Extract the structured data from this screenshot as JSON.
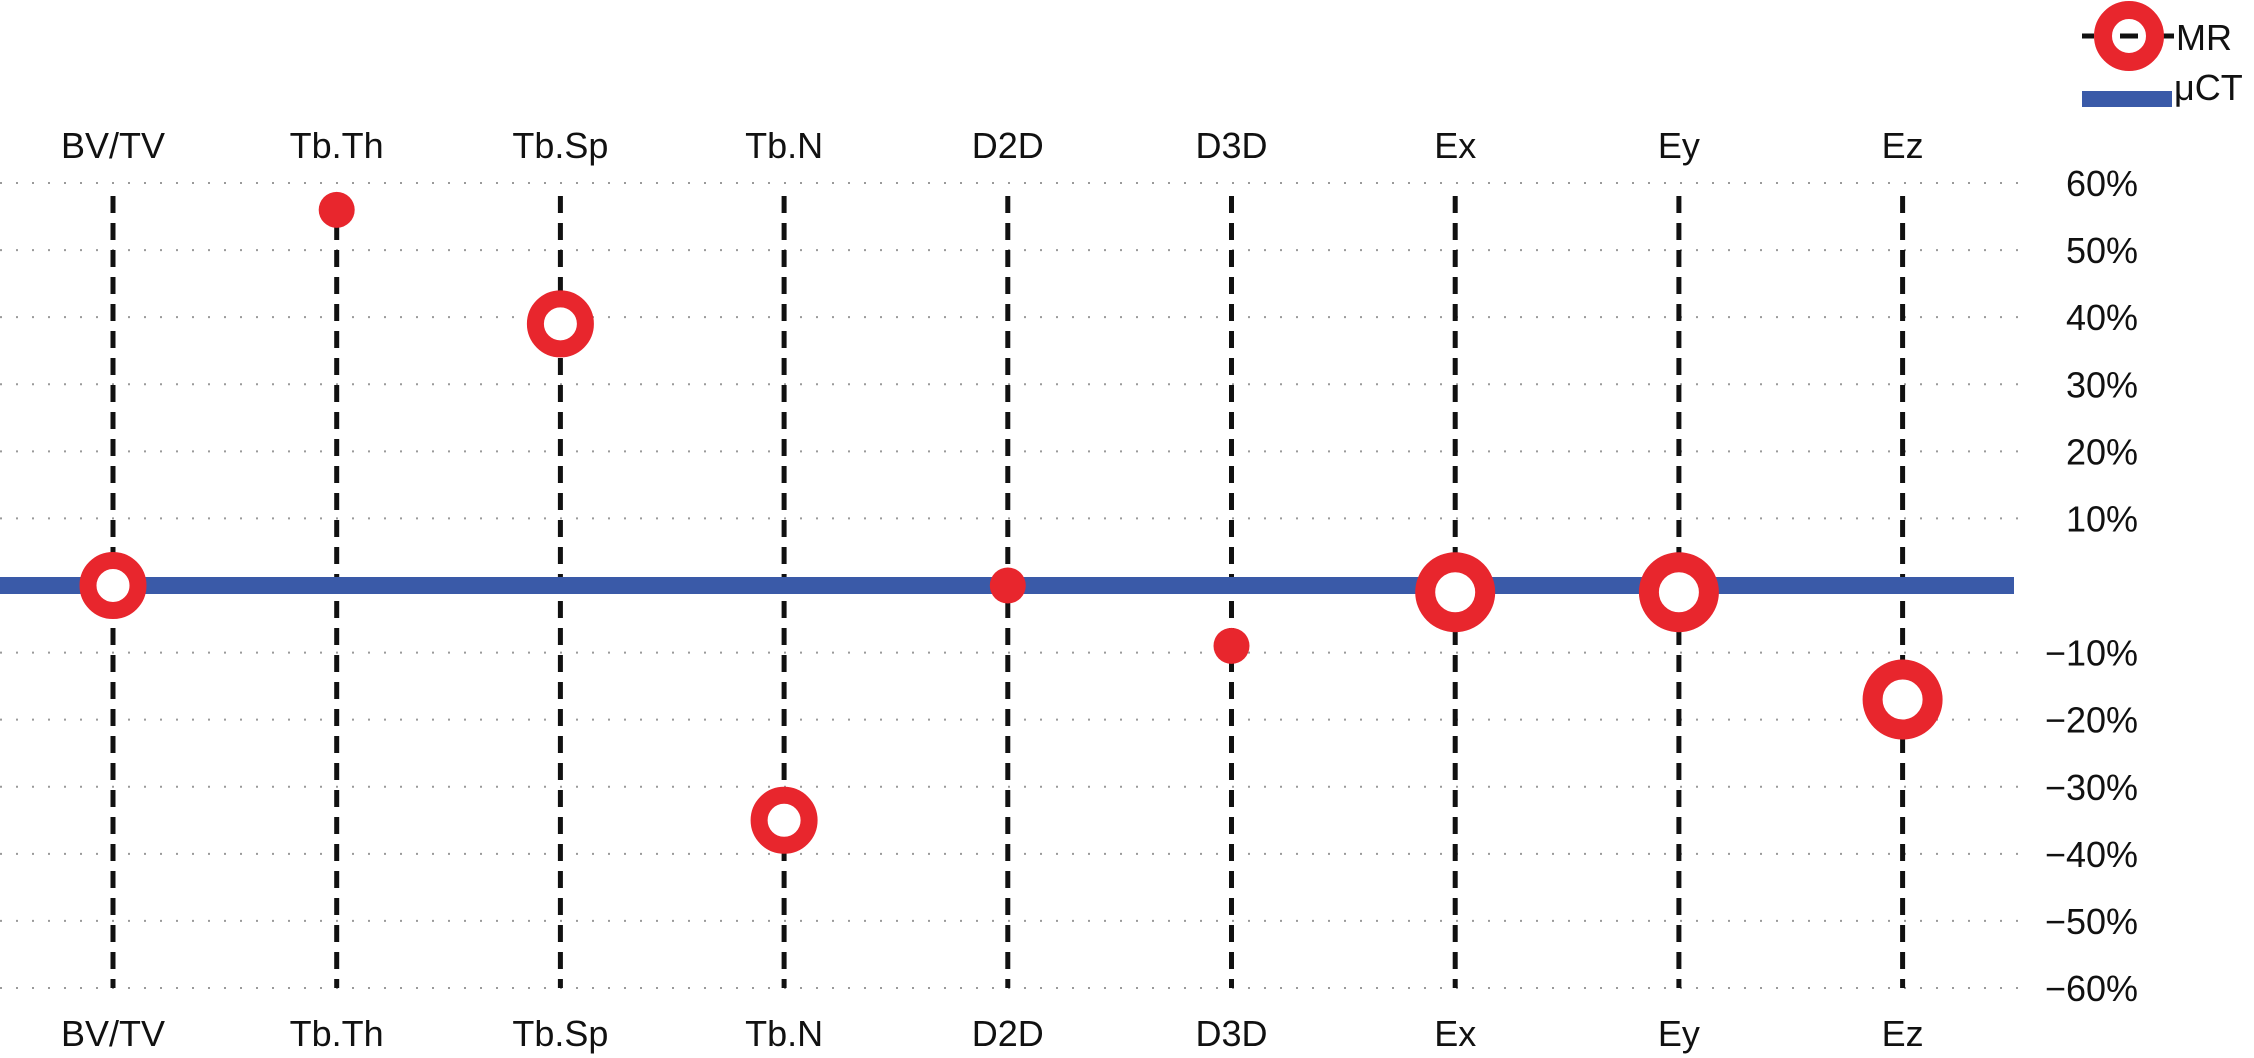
{
  "chart_data": {
    "type": "scatter",
    "categories": [
      "BV/TV",
      "Tb.Th",
      "Tb.Sp",
      "Tb.N",
      "D2D",
      "D3D",
      "Ex",
      "Ey",
      "Ez"
    ],
    "series": [
      {
        "name": "MR",
        "values": [
          0,
          56,
          39,
          -35,
          0,
          -9,
          -1,
          -1,
          -17
        ],
        "marker_style": [
          "ring",
          "dot",
          "ring",
          "ring",
          "dot",
          "dot",
          "ring-large",
          "ring-large",
          "ring-large"
        ],
        "color": "#e8262d"
      },
      {
        "name": "μCT",
        "reference_value": 0,
        "color": "#3a5aa8"
      }
    ],
    "y_ticks": [
      60,
      50,
      40,
      30,
      20,
      10,
      -10,
      -20,
      -30,
      -40,
      -50,
      -60
    ],
    "y_tick_labels": [
      "60%",
      "50%",
      "40%",
      "30%",
      "20%",
      "10%",
      "−10%",
      "−20%",
      "−30%",
      "−40%",
      "−50%",
      "−60%"
    ],
    "ylim": [
      -60,
      60
    ],
    "y_axis_side": "right",
    "grid": "dotted horizontal",
    "legend_position": "top-right",
    "title": "",
    "xlabel": "",
    "ylabel": ""
  }
}
